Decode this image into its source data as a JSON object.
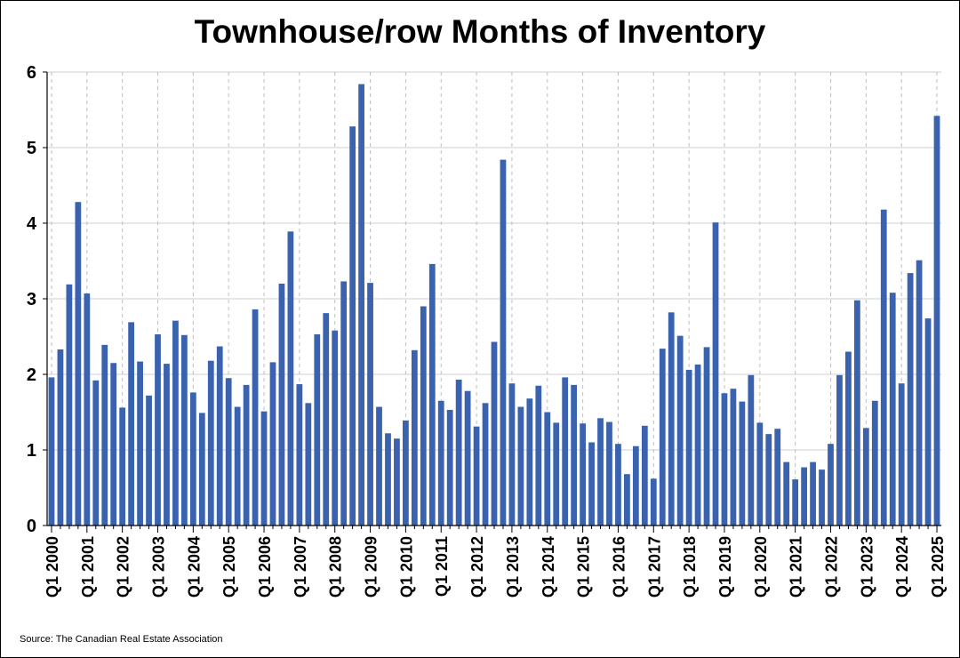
{
  "chart_data": {
    "type": "bar",
    "title": "Townhouse/row Months of Inventory",
    "source": "Source: The Canadian Real Estate Association",
    "ylim": [
      0,
      6
    ],
    "y_ticks": [
      0,
      1,
      2,
      3,
      4,
      5,
      6
    ],
    "grid": {
      "horizontal": true,
      "vertical_dashed": true
    },
    "bar_color": "#3A62AE",
    "x_tick_labels": [
      "Q1 2000",
      "Q1 2001",
      "Q1 2002",
      "Q1 2003",
      "Q1 2004",
      "Q1 2005",
      "Q1 2006",
      "Q1 2007",
      "Q1 2008",
      "Q1 2009",
      "Q1 2010",
      "Q1 2011",
      "Q1 2012",
      "Q1 2013",
      "Q1 2014",
      "Q1 2015",
      "Q1 2016",
      "Q1 2017",
      "Q1 2018",
      "Q1 2019",
      "Q1 2020",
      "Q1 2021",
      "Q1 2022",
      "Q1 2023",
      "Q1 2024",
      "Q1 2025"
    ],
    "categories": [
      "Q1 2000",
      "Q2 2000",
      "Q3 2000",
      "Q4 2000",
      "Q1 2001",
      "Q2 2001",
      "Q3 2001",
      "Q4 2001",
      "Q1 2002",
      "Q2 2002",
      "Q3 2002",
      "Q4 2002",
      "Q1 2003",
      "Q2 2003",
      "Q3 2003",
      "Q4 2003",
      "Q1 2004",
      "Q2 2004",
      "Q3 2004",
      "Q4 2004",
      "Q1 2005",
      "Q2 2005",
      "Q3 2005",
      "Q4 2005",
      "Q1 2006",
      "Q2 2006",
      "Q3 2006",
      "Q4 2006",
      "Q1 2007",
      "Q2 2007",
      "Q3 2007",
      "Q4 2007",
      "Q1 2008",
      "Q2 2008",
      "Q3 2008",
      "Q4 2008",
      "Q1 2009",
      "Q2 2009",
      "Q3 2009",
      "Q4 2009",
      "Q1 2010",
      "Q2 2010",
      "Q3 2010",
      "Q4 2010",
      "Q1 2011",
      "Q2 2011",
      "Q3 2011",
      "Q4 2011",
      "Q1 2012",
      "Q2 2012",
      "Q3 2012",
      "Q4 2012",
      "Q1 2013",
      "Q2 2013",
      "Q3 2013",
      "Q4 2013",
      "Q1 2014",
      "Q2 2014",
      "Q3 2014",
      "Q4 2014",
      "Q1 2015",
      "Q2 2015",
      "Q3 2015",
      "Q4 2015",
      "Q1 2016",
      "Q2 2016",
      "Q3 2016",
      "Q4 2016",
      "Q1 2017",
      "Q2 2017",
      "Q3 2017",
      "Q4 2017",
      "Q1 2018",
      "Q2 2018",
      "Q3 2018",
      "Q4 2018",
      "Q1 2019",
      "Q2 2019",
      "Q3 2019",
      "Q4 2019",
      "Q1 2020",
      "Q2 2020",
      "Q3 2020",
      "Q4 2020",
      "Q1 2021",
      "Q2 2021",
      "Q3 2021",
      "Q4 2021",
      "Q1 2022",
      "Q2 2022",
      "Q3 2022",
      "Q4 2022",
      "Q1 2023",
      "Q2 2023",
      "Q3 2023",
      "Q4 2023",
      "Q1 2024",
      "Q2 2024",
      "Q3 2024",
      "Q4 2024",
      "Q1 2025"
    ],
    "values": [
      1.96,
      2.33,
      3.19,
      4.28,
      3.07,
      1.92,
      2.39,
      2.15,
      1.56,
      2.69,
      2.17,
      1.72,
      2.53,
      2.14,
      2.71,
      2.52,
      1.76,
      1.49,
      2.18,
      2.37,
      1.95,
      1.57,
      1.86,
      2.86,
      1.51,
      2.16,
      3.2,
      3.89,
      1.87,
      1.62,
      2.53,
      2.81,
      2.58,
      3.23,
      5.28,
      5.84,
      3.21,
      1.57,
      1.22,
      1.15,
      1.39,
      2.32,
      2.9,
      3.46,
      1.65,
      1.53,
      1.93,
      1.78,
      1.31,
      1.62,
      2.43,
      4.84,
      1.88,
      1.57,
      1.68,
      1.85,
      1.5,
      1.36,
      1.96,
      1.86,
      1.35,
      1.1,
      1.42,
      1.37,
      1.08,
      0.68,
      1.05,
      1.32,
      0.62,
      2.34,
      2.82,
      2.51,
      2.06,
      2.13,
      2.36,
      4.01,
      1.75,
      1.81,
      1.64,
      1.99,
      1.36,
      1.21,
      1.28,
      0.84,
      0.61,
      0.77,
      0.84,
      0.74,
      1.08,
      1.99,
      2.3,
      2.98,
      1.29,
      1.65,
      4.18,
      3.08,
      1.88,
      3.34,
      3.51,
      2.74,
      5.42
    ]
  }
}
